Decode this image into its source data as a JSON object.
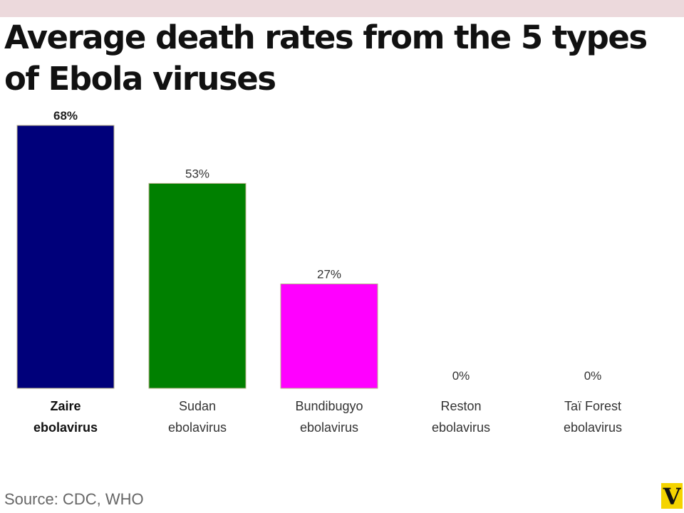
{
  "title": "Average death rates from the 5 types of Ebola viruses",
  "source": "Source: CDC, WHO",
  "logo": {
    "text": "V",
    "color": "#f5d400"
  },
  "chart_data": {
    "type": "bar",
    "title": "Average death rates from the 5 types of Ebola viruses",
    "categories": [
      [
        "Zaire",
        "ebolavirus"
      ],
      [
        "Sudan",
        "ebolavirus"
      ],
      [
        "Bundibugyo",
        "ebolavirus"
      ],
      [
        "Reston",
        "ebolavirus"
      ],
      [
        "Taï Forest",
        "ebolavirus"
      ]
    ],
    "values": [
      68,
      53,
      27,
      0,
      0
    ],
    "value_labels": [
      "68%",
      "53%",
      "27%",
      "0%",
      "0%"
    ],
    "colors": [
      "#00007a",
      "#008000",
      "#ff00ff",
      "#cccccc",
      "#cccccc"
    ],
    "highlight_index": 0,
    "ylim": [
      0,
      68
    ],
    "grid": false,
    "legend": "none"
  }
}
